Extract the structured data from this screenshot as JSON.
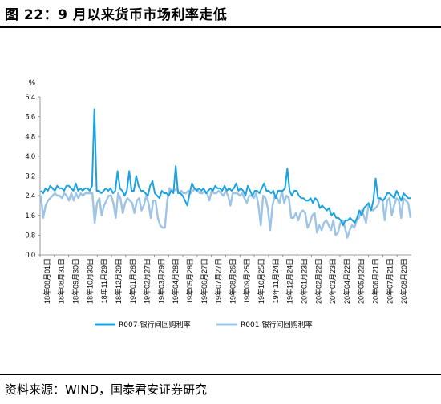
{
  "title": "图 22：9 月以来货币市场利率走低",
  "source": "资料来源：WIND，国泰君安证券研究",
  "colors": {
    "r007": "#1aa3e0",
    "r001": "#9dc3e6"
  },
  "chart_data": {
    "type": "line",
    "y_unit": "%",
    "ylim": [
      0.0,
      6.4
    ],
    "yticks": [
      "6.4",
      "5.6",
      "4.8",
      "4.0",
      "3.2",
      "2.4",
      "1.6",
      "0.8",
      "0.0"
    ],
    "x_tick_labels": [
      "18年08月01日",
      "18年08月31日",
      "18年09月30日",
      "18年10月30日",
      "18年11月29日",
      "18年12月29日",
      "19年01月28日",
      "19年02月27日",
      "19年03月29日",
      "19年04月28日",
      "19年05月28日",
      "19年06月27日",
      "19年07月27日",
      "19年08月26日",
      "19年09月25日",
      "19年10月25日",
      "19年11月24日",
      "19年12月24日",
      "20年01月23日",
      "20年02月22日",
      "20年03月23日",
      "20年04月22日",
      "20年05月22日",
      "20年06月21日",
      "20年07月21日",
      "20年08月20日"
    ],
    "grid": false,
    "legend_position": "bottom",
    "series": [
      {
        "name": "R007-银行间回购利率",
        "values": [
          2.6,
          2.5,
          2.7,
          2.6,
          2.8,
          2.7,
          2.6,
          2.8,
          2.7,
          2.7,
          2.6,
          2.8,
          2.8,
          2.7,
          2.6,
          2.9,
          2.6,
          2.7,
          2.6,
          2.7,
          2.7,
          2.6,
          2.8,
          5.9,
          2.6,
          2.6,
          2.5,
          2.6,
          2.7,
          2.6,
          2.7,
          2.5,
          2.6,
          3.4,
          2.7,
          2.6,
          2.4,
          2.6,
          3.4,
          2.6,
          2.6,
          3.2,
          2.8,
          2.6,
          2.6,
          2.5,
          2.4,
          2.8,
          3.0,
          2.5,
          2.4,
          2.3,
          2.6,
          2.5,
          2.5,
          2.4,
          2.6,
          2.5,
          3.6,
          2.5,
          2.5,
          2.4,
          2.2,
          2.0,
          2.5,
          2.9,
          2.7,
          2.6,
          2.7,
          2.6,
          2.7,
          2.5,
          2.6,
          2.7,
          2.6,
          2.8,
          2.7,
          2.7,
          2.6,
          2.8,
          2.6,
          2.7,
          2.6,
          2.7,
          2.9,
          2.6,
          2.7,
          2.6,
          2.4,
          2.8,
          2.6,
          2.4,
          2.6,
          2.6,
          2.5,
          2.7,
          2.9,
          2.6,
          2.6,
          2.5,
          2.6,
          2.3,
          2.6,
          2.6,
          2.6,
          2.7,
          3.5,
          2.6,
          2.4,
          2.6,
          2.6,
          2.4,
          2.3,
          2.3,
          2.2,
          2.2,
          2.3,
          2.1,
          2.3,
          2.2,
          1.9,
          2.0,
          1.9,
          1.8,
          1.9,
          1.6,
          1.7,
          1.5,
          1.5,
          1.4,
          1.2,
          1.4,
          1.4,
          1.5,
          1.4,
          1.3,
          1.5,
          1.8,
          1.6,
          1.9,
          2.0,
          2.1,
          1.8,
          2.2,
          3.1,
          2.3,
          2.3,
          2.2,
          2.3,
          2.5,
          2.5,
          2.4,
          2.3,
          2.6,
          2.4,
          2.2,
          2.5,
          2.4,
          2.3,
          2.3
        ]
      },
      {
        "name": "R001-银行间回购利率",
        "values": [
          2.4,
          1.5,
          2.0,
          2.2,
          2.3,
          2.4,
          2.5,
          2.4,
          2.4,
          2.3,
          2.5,
          2.4,
          2.2,
          2.5,
          2.2,
          2.5,
          2.3,
          2.5,
          2.4,
          2.5,
          2.5,
          2.5,
          2.5,
          1.3,
          2.1,
          2.3,
          1.6,
          2.0,
          2.2,
          2.4,
          2.4,
          2.1,
          1.5,
          2.5,
          2.3,
          1.7,
          2.1,
          2.3,
          2.2,
          2.1,
          1.7,
          2.2,
          2.3,
          1.8,
          2.0,
          2.4,
          2.1,
          1.5,
          2.2,
          2.2,
          1.5,
          1.2,
          1.1,
          1.1,
          2.2,
          2.7,
          2.6,
          2.6,
          2.7,
          2.5,
          2.6,
          2.5,
          2.5,
          2.6,
          2.5,
          2.6,
          2.7,
          2.6,
          2.5,
          2.5,
          2.6,
          2.5,
          2.2,
          2.6,
          2.5,
          2.5,
          2.6,
          2.5,
          2.4,
          2.6,
          2.4,
          2.0,
          2.5,
          2.5,
          2.5,
          2.4,
          2.5,
          2.3,
          2.1,
          2.4,
          2.4,
          2.3,
          2.5,
          2.0,
          1.2,
          2.4,
          2.3,
          1.9,
          1.0,
          2.0,
          2.4,
          2.3,
          2.1,
          2.6,
          2.1,
          2.4,
          2.3,
          1.5,
          1.5,
          1.7,
          1.4,
          1.7,
          1.8,
          1.7,
          1.1,
          1.3,
          1.6,
          1.7,
          0.9,
          1.2,
          1.0,
          1.3,
          1.4,
          1.2,
          1.0,
          1.4,
          0.8,
          0.9,
          1.3,
          1.4,
          1.1,
          0.7,
          1.0,
          1.2,
          1.1,
          1.4,
          1.5,
          1.8,
          1.6,
          1.3,
          2.0,
          1.9,
          1.8,
          1.9,
          2.0,
          2.3,
          2.2,
          1.4,
          2.2,
          2.3,
          1.6,
          2.0,
          2.3,
          2.2,
          1.5,
          2.3,
          2.2,
          2.1,
          1.5
        ]
      }
    ]
  }
}
